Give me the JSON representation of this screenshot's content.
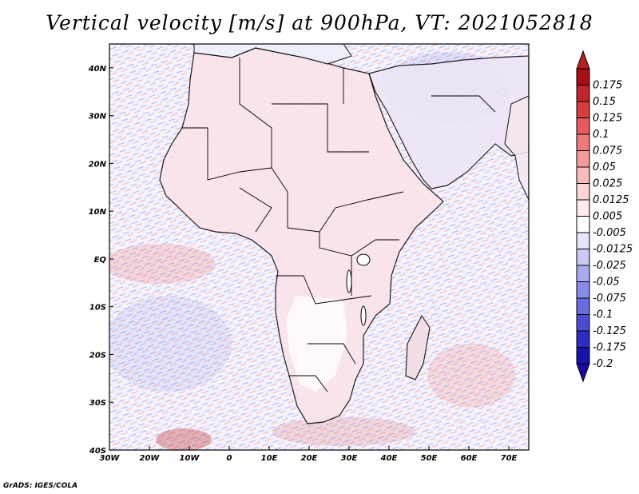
{
  "title": "Vertical velocity [m/s] at 900hPa, VT: 2021052818",
  "credit": "GrADS: IGES/COLA",
  "map": {
    "lon_range": [
      -30,
      75
    ],
    "lat_range": [
      -40,
      45
    ],
    "lon_ticks": [
      {
        "value": -30,
        "label": "30W"
      },
      {
        "value": -20,
        "label": "20W"
      },
      {
        "value": -10,
        "label": "10W"
      },
      {
        "value": 0,
        "label": "0"
      },
      {
        "value": 10,
        "label": "10E"
      },
      {
        "value": 20,
        "label": "20E"
      },
      {
        "value": 30,
        "label": "30E"
      },
      {
        "value": 40,
        "label": "40E"
      },
      {
        "value": 50,
        "label": "50E"
      },
      {
        "value": 60,
        "label": "60E"
      },
      {
        "value": 70,
        "label": "70E"
      }
    ],
    "lat_ticks": [
      {
        "value": 40,
        "label": "40N"
      },
      {
        "value": 30,
        "label": "30N"
      },
      {
        "value": 20,
        "label": "20N"
      },
      {
        "value": 10,
        "label": "10N"
      },
      {
        "value": 0,
        "label": "EQ"
      },
      {
        "value": -10,
        "label": "10S"
      },
      {
        "value": -20,
        "label": "20S"
      },
      {
        "value": -30,
        "label": "30S"
      },
      {
        "value": -40,
        "label": "40S"
      }
    ]
  },
  "colorbar": {
    "levels": [
      {
        "label": "0.175",
        "color": "#a50f15"
      },
      {
        "label": "0.15",
        "color": "#c0272d"
      },
      {
        "label": "0.125",
        "color": "#d73d3d"
      },
      {
        "label": "0.1",
        "color": "#e55b5b"
      },
      {
        "label": "0.075",
        "color": "#ee7b7b"
      },
      {
        "label": "0.05",
        "color": "#f49a9a"
      },
      {
        "label": "0.025",
        "color": "#f9baba"
      },
      {
        "label": "0.0125",
        "color": "#fcd6d6"
      },
      {
        "label": "0.005",
        "color": "#feecec"
      },
      {
        "label": "-0.005",
        "color": "#ffffff"
      },
      {
        "label": "-0.0125",
        "color": "#e6e6fb"
      },
      {
        "label": "-0.025",
        "color": "#c9c9f5"
      },
      {
        "label": "-0.05",
        "color": "#a9a9ef"
      },
      {
        "label": "-0.075",
        "color": "#8a8ae8"
      },
      {
        "label": "-0.1",
        "color": "#6b6be0"
      },
      {
        "label": "-0.125",
        "color": "#4b4bd4"
      },
      {
        "label": "-0.175",
        "color": "#2c2cc2"
      },
      {
        "label": "-0.2",
        "color": "#1414a8"
      }
    ],
    "top_color": "#b22222",
    "bottom_color": "#1a0a9e"
  }
}
